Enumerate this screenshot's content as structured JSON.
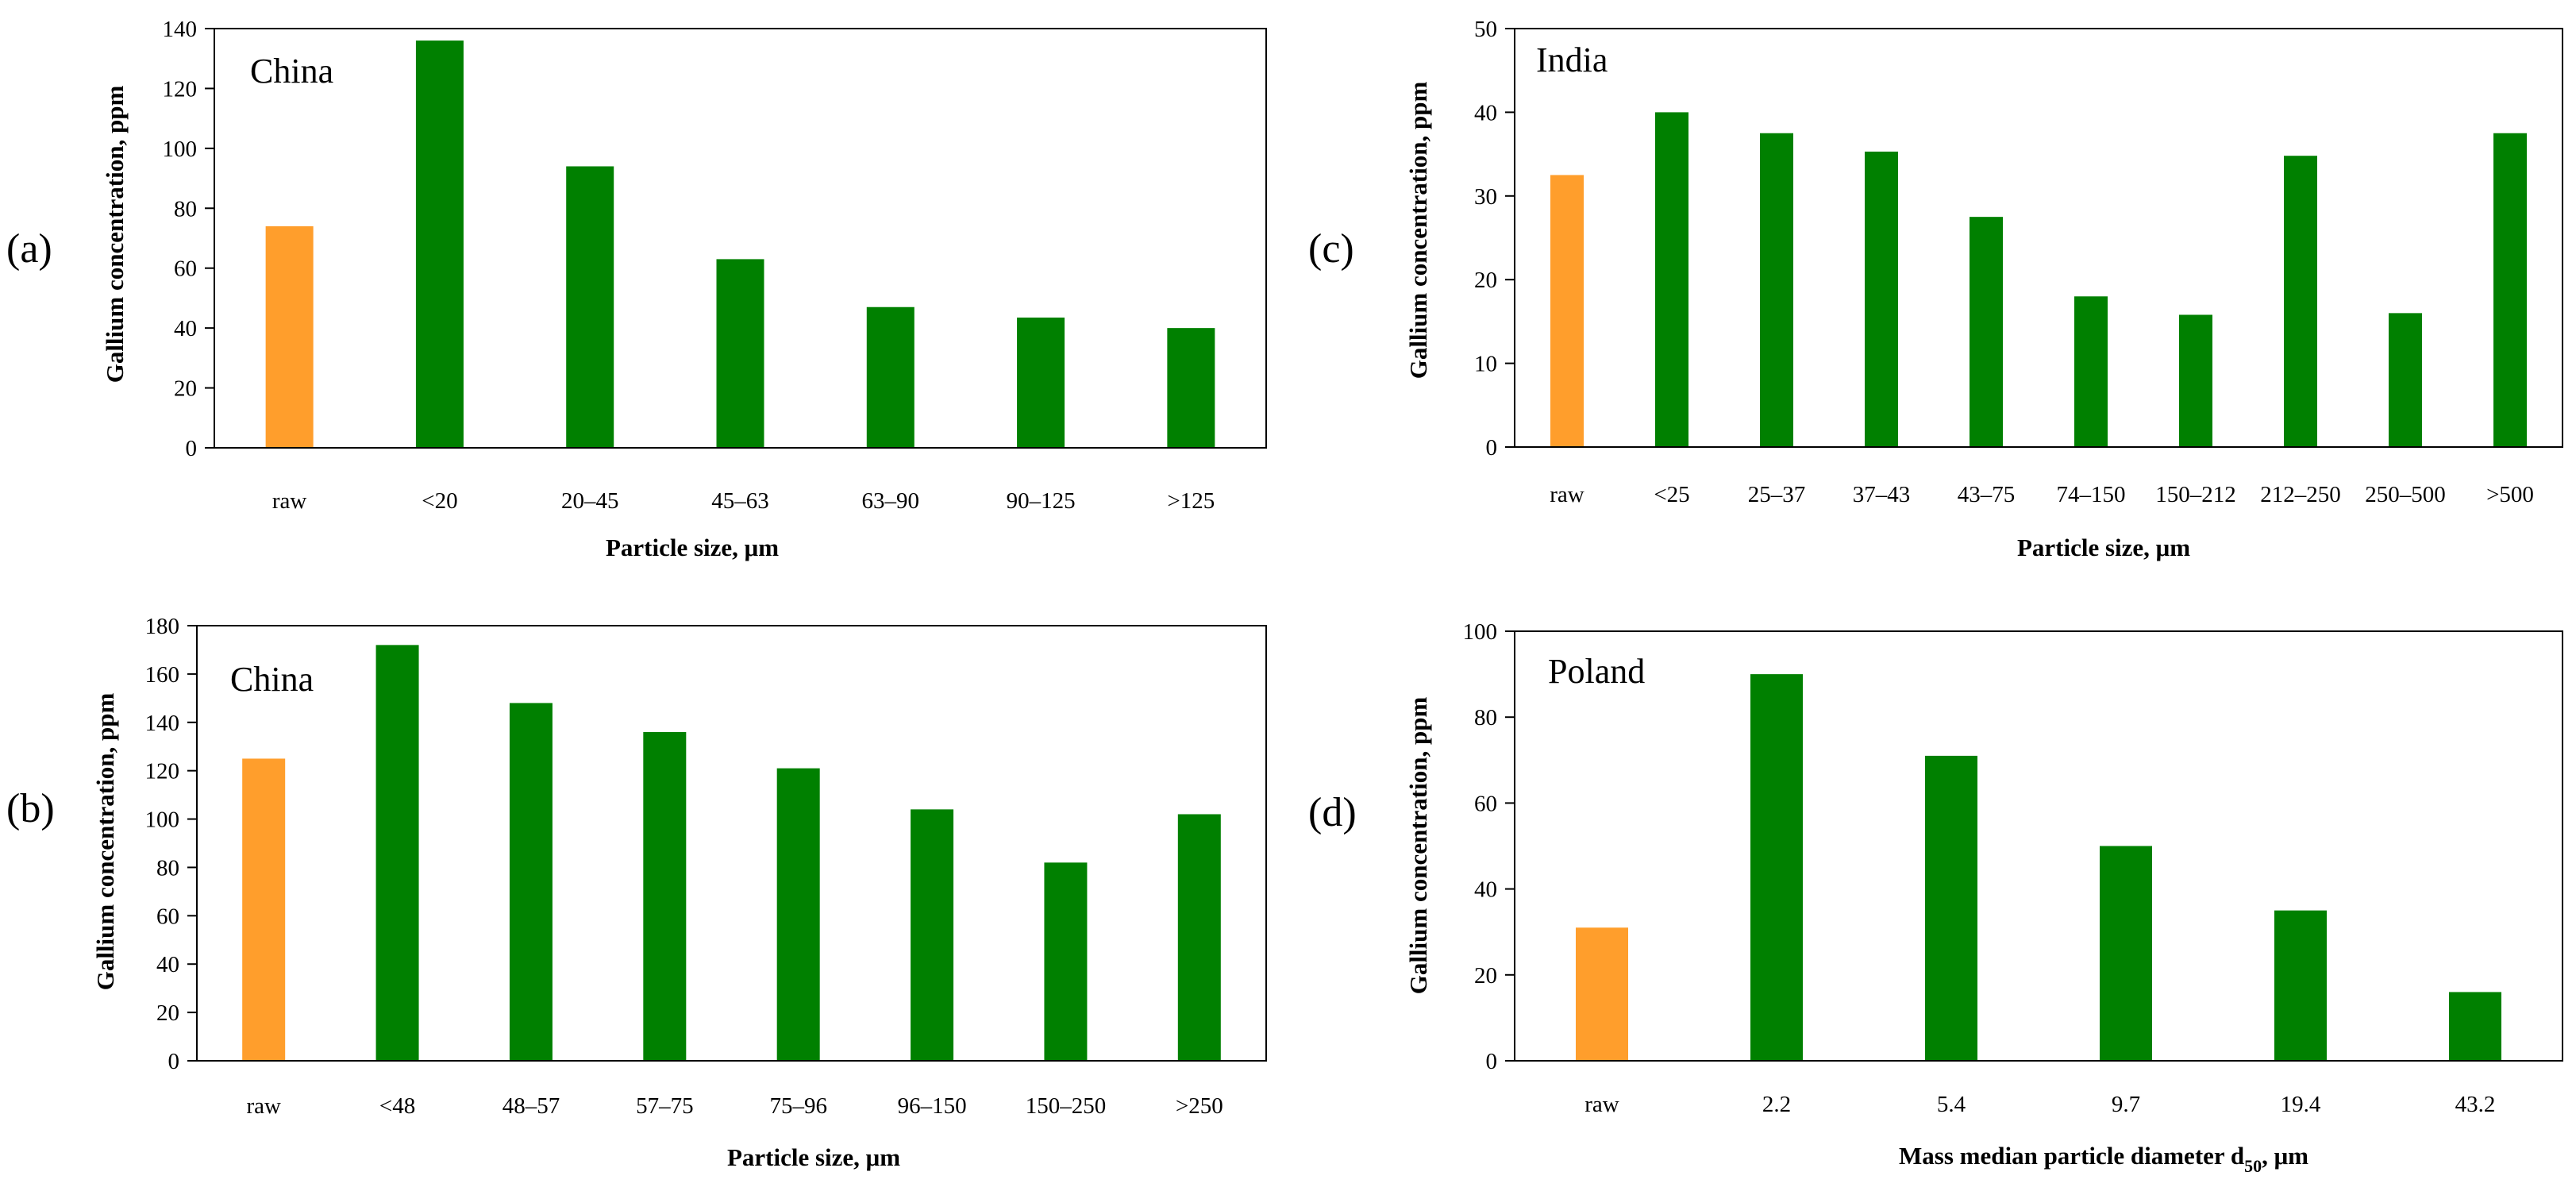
{
  "colors": {
    "raw": "#ff9e2c",
    "fraction": "#008000",
    "axis": "#000000"
  },
  "chart_data": [
    {
      "panel": "(a)",
      "type": "bar",
      "region": "China",
      "categories": [
        "raw",
        "<20",
        "20–45",
        "45–63",
        "63–90",
        "90–125",
        ">125"
      ],
      "values": [
        74,
        136,
        94,
        63,
        47,
        43.5,
        40
      ],
      "xlabel": "Particle size, μm",
      "ylabel": "Gallium concentration, ppm",
      "ylim": [
        0,
        140
      ],
      "yticks": [
        0,
        20,
        40,
        60,
        80,
        100,
        120,
        140
      ]
    },
    {
      "panel": "(b)",
      "type": "bar",
      "region": "China",
      "categories": [
        "raw",
        "<48",
        "48–57",
        "57–75",
        "75–96",
        "96–150",
        "150–250",
        ">250"
      ],
      "values": [
        125,
        172,
        148,
        136,
        121,
        104,
        82,
        102
      ],
      "xlabel": "Particle size, μm",
      "ylabel": "Gallium concentration, ppm",
      "ylim": [
        0,
        180
      ],
      "yticks": [
        0,
        20,
        40,
        60,
        80,
        100,
        120,
        140,
        160,
        180
      ]
    },
    {
      "panel": "(c)",
      "type": "bar",
      "region": "India",
      "categories": [
        "raw",
        "<25",
        "25–37",
        "37–43",
        "43–75",
        "74–150",
        "150–212",
        "212–250",
        "250–500",
        ">500"
      ],
      "values": [
        32.5,
        40,
        37.5,
        35.3,
        27.5,
        18,
        15.8,
        34.8,
        16,
        37.5
      ],
      "xlabel": "Particle size, μm",
      "ylabel": "Gallium concentration, ppm",
      "ylim": [
        0,
        50
      ],
      "yticks": [
        0,
        10,
        20,
        30,
        40,
        50
      ]
    },
    {
      "panel": "(d)",
      "type": "bar",
      "region": "Poland",
      "categories": [
        "raw",
        "2.2",
        "5.4",
        "9.7",
        "19.4",
        "43.2"
      ],
      "values": [
        31,
        90,
        71,
        50,
        35,
        16
      ],
      "xlabel_main": "Mass median particle diameter d",
      "xlabel_sub": "50",
      "xlabel_tail": ", μm",
      "ylabel": "Gallium concentration, ppm",
      "ylim": [
        0,
        100
      ],
      "yticks": [
        0,
        20,
        40,
        60,
        80,
        100
      ]
    }
  ]
}
